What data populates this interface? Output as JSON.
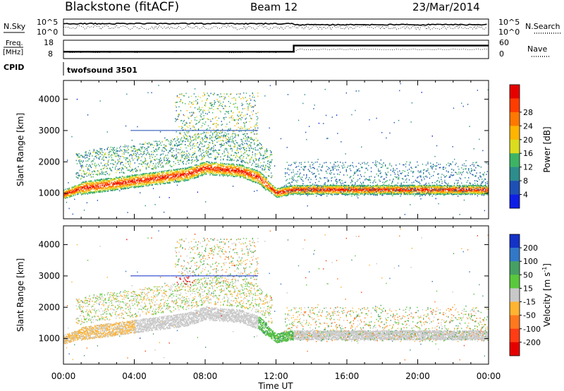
{
  "header": {
    "station": "Blackstone (fitACF)",
    "beam": "Beam 12",
    "date": "23/Mar/2014"
  },
  "left_labels": {
    "nsky": "N.Sky",
    "freq_line1": "Freq.",
    "freq_line2": "[MHz]",
    "cpid": "CPID"
  },
  "right_labels": {
    "nsearch": "N.Search",
    "nave": "Nave"
  },
  "strip_ticks": {
    "noise_left": [
      "10^5",
      "10^0"
    ],
    "noise_right": [
      "10^5",
      "10^0"
    ],
    "freq_left": [
      "18",
      "8"
    ],
    "nave_right": [
      "60",
      "0"
    ]
  },
  "cpid_text": "twofsound 3501",
  "x_axis": {
    "ticks": [
      "00:00",
      "04:00",
      "08:00",
      "12:00",
      "16:00",
      "20:00",
      "00:00"
    ],
    "label": "Time UT"
  },
  "y_axis": {
    "label": "Slant Range [km]",
    "ticks": [
      "1000",
      "2000",
      "3000",
      "4000"
    ]
  },
  "power_scale": {
    "label": "Power [dB]",
    "ticks": [
      "4",
      "8",
      "12",
      "16",
      "20",
      "24",
      "28"
    ],
    "colors": [
      "#0f1ee6",
      "#1e50b4",
      "#2d8c8c",
      "#3cb464",
      "#dcdc1e",
      "#ffb400",
      "#ff7800",
      "#ff3c00",
      "#e60000"
    ]
  },
  "velocity_scale": {
    "label_prefix": "Velocity [m s",
    "label_sup": "-1",
    "label_suffix": "]",
    "ticks": [
      "200",
      "100",
      "50",
      "15",
      "-15",
      "-50",
      "-100",
      "-200"
    ],
    "colors": [
      "#1432c8",
      "#3278c8",
      "#46a064",
      "#5ac83c",
      "#c8c8c8",
      "#ffb432",
      "#ff781e",
      "#ff3c14",
      "#e60000"
    ]
  },
  "chart_data": [
    {
      "type": "heatmap",
      "title": "Power",
      "xlabel": "Time UT",
      "ylabel": "Slant Range [km]",
      "x_range_hours": [
        0,
        24
      ],
      "ylim": [
        180,
        4600
      ],
      "colorbar_range_db": [
        0,
        32
      ],
      "main_echo_band_km": [
        [
          0,
          950
        ],
        [
          1,
          1150
        ],
        [
          3,
          1300
        ],
        [
          5,
          1450
        ],
        [
          7,
          1600
        ],
        [
          8,
          1800
        ],
        [
          10,
          1700
        ],
        [
          11,
          1500
        ],
        [
          12,
          1000
        ],
        [
          13,
          1100
        ],
        [
          16,
          1100
        ],
        [
          20,
          1100
        ],
        [
          24,
          1100
        ]
      ]
    },
    {
      "type": "heatmap",
      "title": "Velocity",
      "xlabel": "Time UT",
      "ylabel": "Slant Range [km]",
      "x_range_hours": [
        0,
        24
      ],
      "ylim": [
        180,
        4600
      ],
      "colorbar_range_ms": [
        -250,
        250
      ]
    },
    {
      "type": "line",
      "title": "Frequency",
      "x": [
        0,
        13,
        13,
        24
      ],
      "values": [
        10.5,
        10.5,
        14.5,
        14.5
      ],
      "ylim": [
        6,
        18
      ]
    }
  ]
}
